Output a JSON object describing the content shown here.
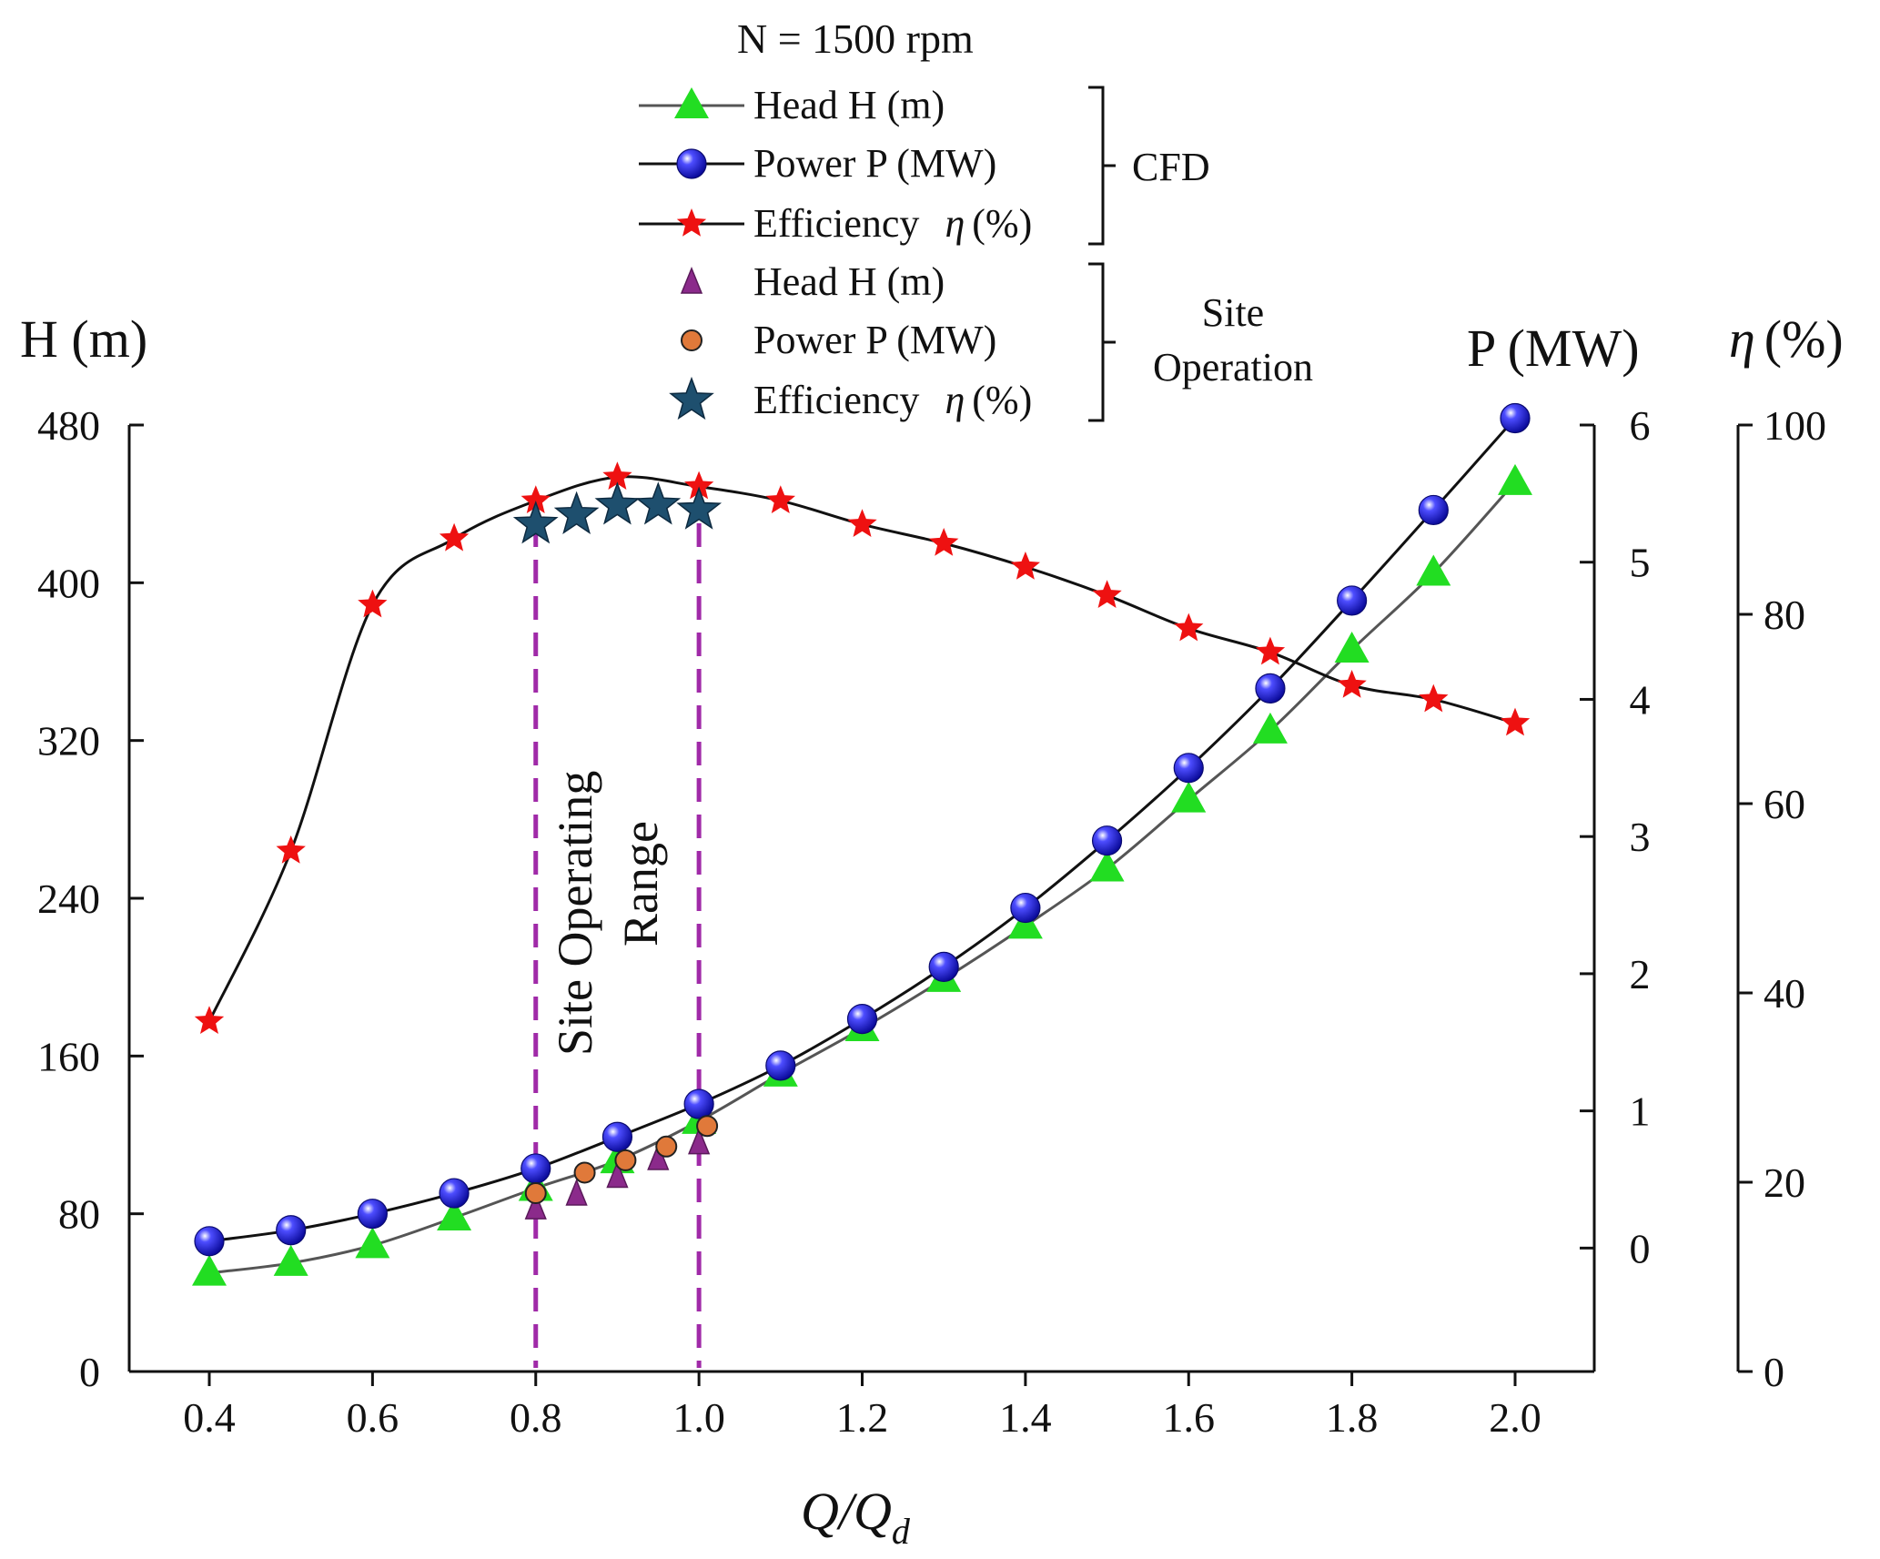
{
  "chart_data": {
    "type": "line",
    "title": "N = 1500 rpm",
    "xlabel": "Q/Q",
    "xlabel_sub": "d",
    "xlim": [
      0.4,
      2.0
    ],
    "x_ticks": [
      "0.4",
      "0.6",
      "0.8",
      "1.0",
      "1.2",
      "1.4",
      "1.6",
      "1.8",
      "2.0"
    ],
    "axes": {
      "head": {
        "label": "H (m)",
        "range": [
          0,
          480
        ],
        "ticks": [
          "0",
          "80",
          "160",
          "240",
          "320",
          "400",
          "480"
        ]
      },
      "power": {
        "label": "P (MW)",
        "range": [
          -0.9,
          6
        ],
        "ticks": [
          "0",
          "1",
          "2",
          "3",
          "4",
          "5",
          "6"
        ]
      },
      "efficiency": {
        "label": "(%)",
        "symbol": "η",
        "range": [
          0,
          100
        ],
        "ticks": [
          "0",
          "20",
          "40",
          "60",
          "80",
          "100"
        ]
      }
    },
    "x": [
      0.4,
      0.5,
      0.6,
      0.7,
      0.8,
      0.9,
      1.0,
      1.1,
      1.2,
      1.3,
      1.4,
      1.5,
      1.6,
      1.7,
      1.8,
      1.9,
      2.0
    ],
    "series": [
      {
        "name": "Head H (m)",
        "group": "CFD",
        "axis": "head",
        "marker": "triangle",
        "color": "#22dd22",
        "line_color": "#555555",
        "values": [
          50,
          55,
          64,
          78,
          93,
          107,
          127,
          151,
          174,
          199,
          226,
          255,
          290,
          325,
          366,
          405,
          451
        ]
      },
      {
        "name": "Power P (MW)",
        "group": "CFD",
        "axis": "power",
        "marker": "sphere",
        "color": "#1a1aee",
        "line_color": "#111111",
        "values": [
          0.05,
          0.13,
          0.25,
          0.4,
          0.58,
          0.81,
          1.05,
          1.33,
          1.67,
          2.05,
          2.48,
          2.97,
          3.5,
          4.08,
          4.72,
          5.38,
          6.05
        ]
      },
      {
        "name": "Efficiency",
        "symbol": "η",
        "unit": "(%)",
        "group": "CFD",
        "axis": "efficiency",
        "marker": "star",
        "color": "#ee1111",
        "line_color": "#111111",
        "values": [
          37,
          55,
          81,
          88,
          92,
          94.5,
          93.5,
          92,
          89.5,
          87.5,
          85,
          82,
          78.5,
          76,
          72.5,
          71,
          68.5
        ]
      },
      {
        "name": "Head H (m)",
        "group": "Site Operation",
        "axis": "head",
        "marker": "triangle-small",
        "color": "#8b2a8b",
        "x": [
          0.8,
          0.85,
          0.9,
          0.95,
          1.0
        ],
        "values": [
          83,
          90,
          99,
          108,
          116
        ]
      },
      {
        "name": "Power P (MW)",
        "group": "Site Operation",
        "axis": "power",
        "marker": "circle",
        "color": "#e0793a",
        "x": [
          0.8,
          0.86,
          0.91,
          0.96,
          1.01
        ],
        "values": [
          0.4,
          0.55,
          0.64,
          0.74,
          0.89
        ]
      },
      {
        "name": "Efficiency",
        "symbol": "η",
        "unit": "(%)",
        "group": "Site Operation",
        "axis": "efficiency",
        "marker": "star-large",
        "color": "#1e4f6e",
        "x": [
          0.8,
          0.85,
          0.9,
          0.95,
          1.0
        ],
        "values": [
          89.5,
          90.5,
          91.5,
          91.5,
          91
        ]
      }
    ],
    "groups": [
      {
        "label": "CFD"
      },
      {
        "label_lines": [
          "Site",
          "Operation"
        ]
      }
    ],
    "annotations": [
      {
        "text_lines": [
          "Site Operating",
          "Range"
        ],
        "x_from": 0.8,
        "x_to": 1.0,
        "style": "dashed-vertical-lines",
        "color": "#a02aa8"
      }
    ]
  }
}
